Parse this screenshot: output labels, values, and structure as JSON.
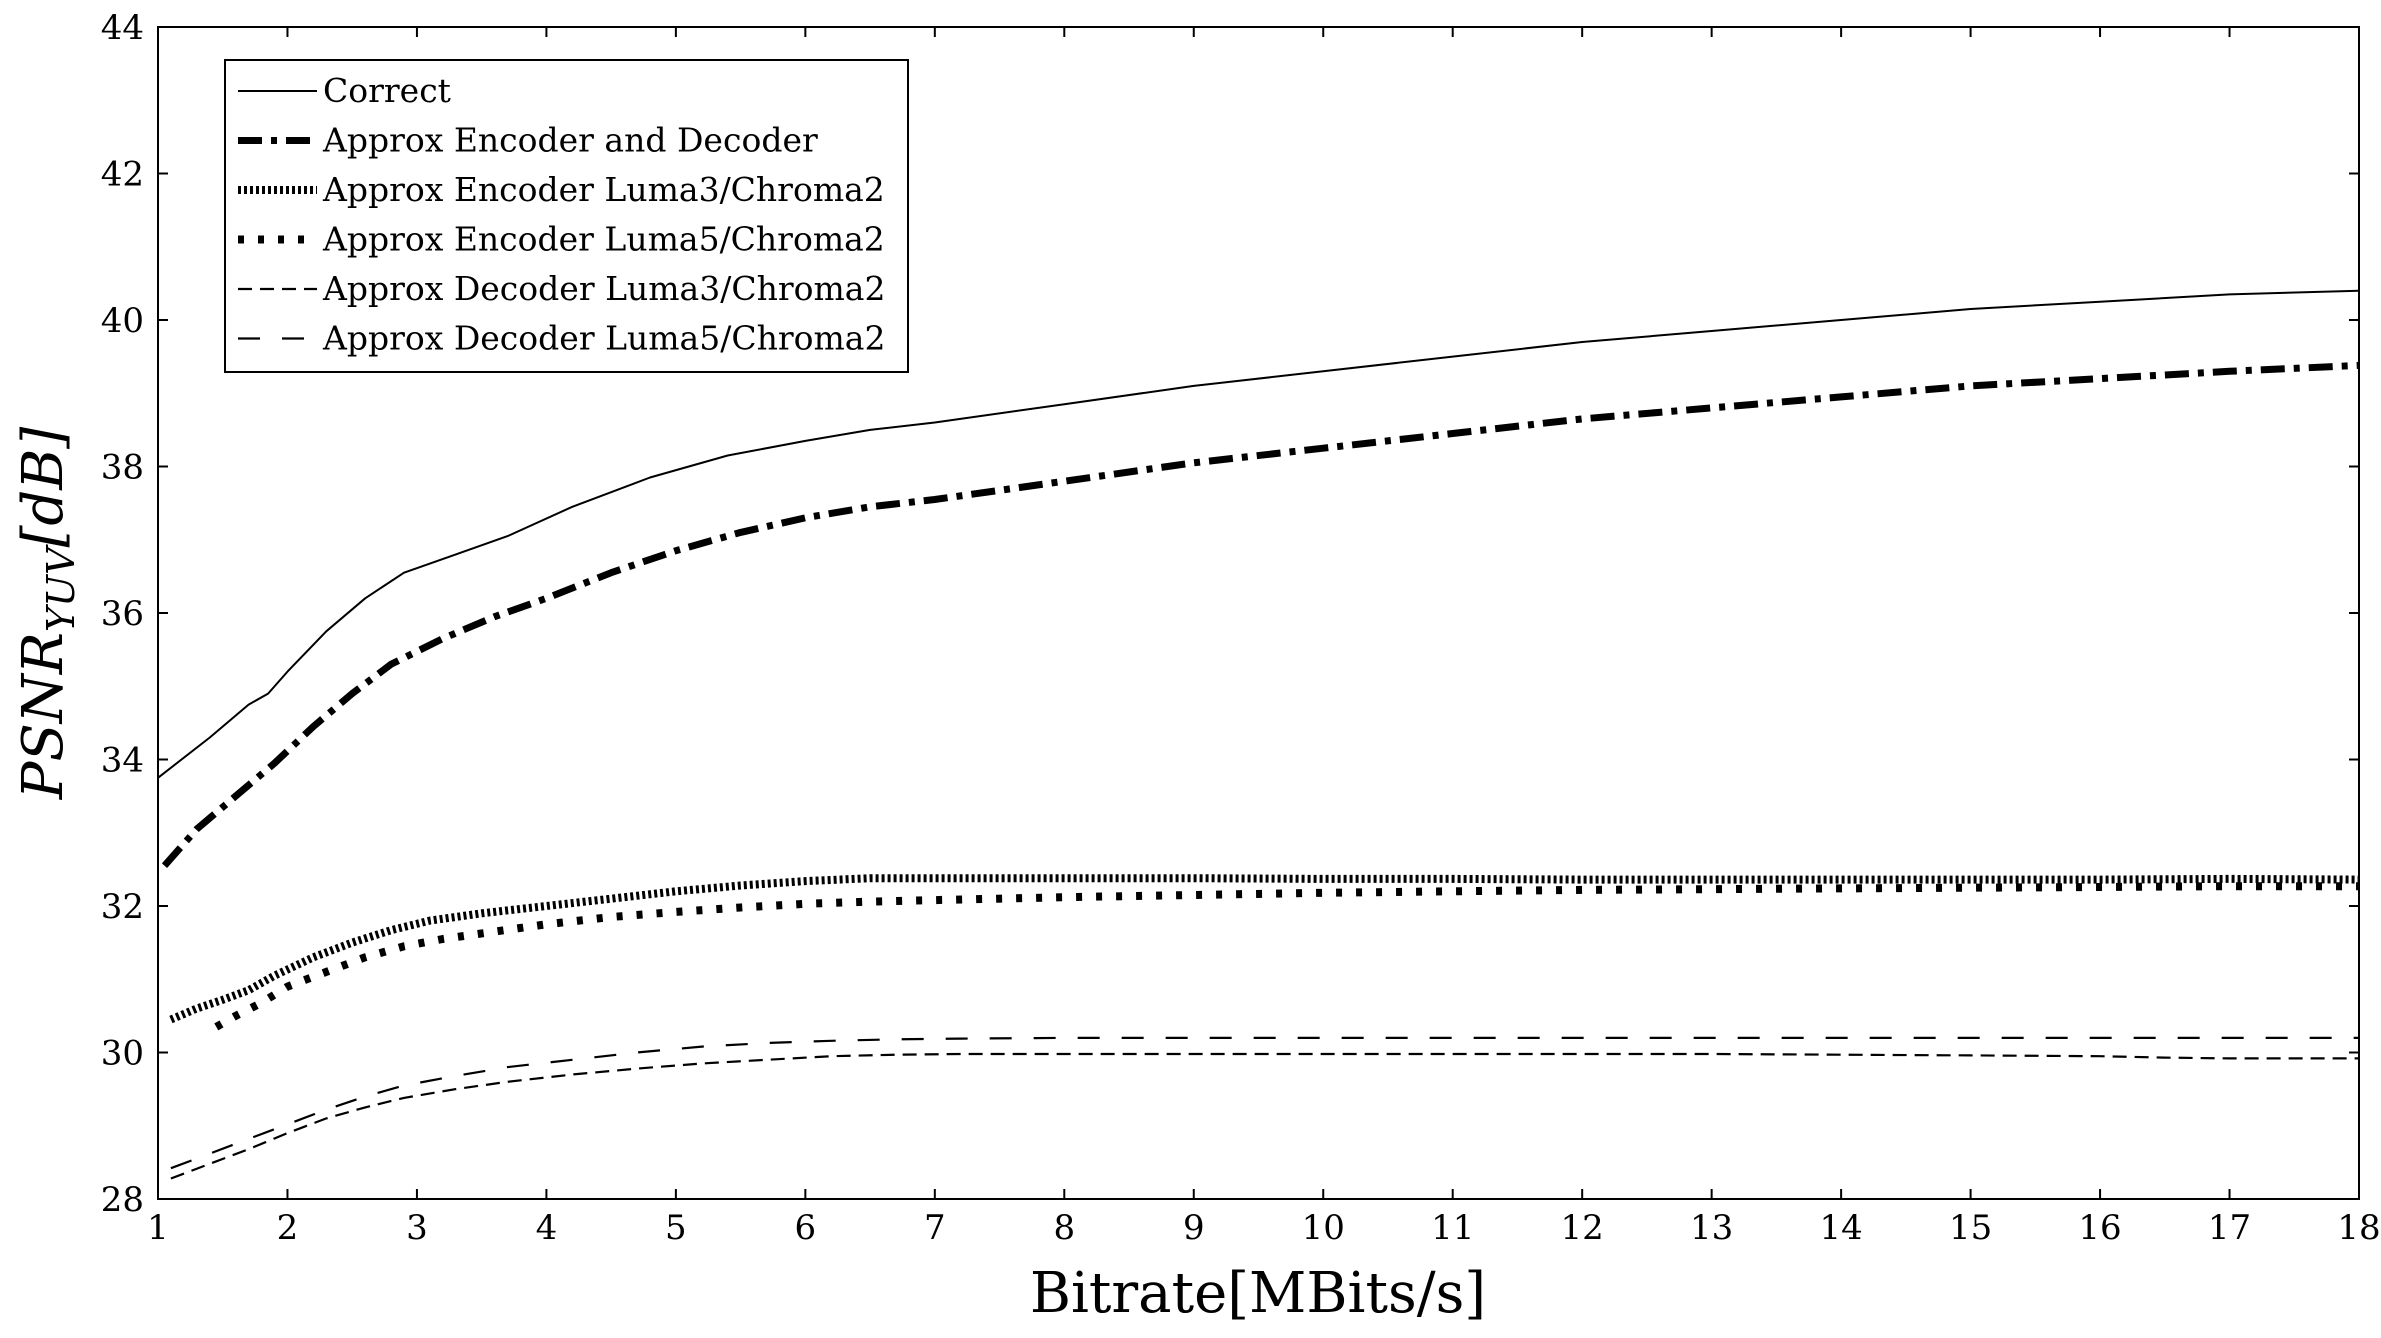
{
  "chart_data": {
    "type": "line",
    "xlabel": "Bitrate[MBits/s]",
    "ylabel": {
      "main": "PSNR",
      "sub": "YUV",
      "unit": "[dB]"
    },
    "xlim": [
      1,
      18
    ],
    "ylim": [
      28,
      44
    ],
    "xticks": [
      "1",
      "2",
      "3",
      "4",
      "5",
      "6",
      "7",
      "8",
      "9",
      "10",
      "11",
      "12",
      "13",
      "14",
      "15",
      "16",
      "17",
      "18"
    ],
    "yticks": [
      "28",
      "30",
      "32",
      "34",
      "36",
      "38",
      "40",
      "42",
      "44"
    ],
    "grid": false,
    "legend_position": "top-left",
    "series": [
      {
        "name": "Correct",
        "style": "solid-thin",
        "x": [
          1,
          1.4,
          1.7,
          1.85,
          2,
          2.3,
          2.6,
          2.9,
          3.3,
          3.7,
          4.2,
          4.8,
          5.4,
          6,
          6.5,
          7,
          8,
          9,
          10,
          11,
          12,
          13,
          14,
          15,
          16,
          17,
          18
        ],
        "y": [
          33.75,
          34.3,
          34.75,
          34.9,
          35.2,
          35.75,
          36.2,
          36.55,
          36.8,
          37.05,
          37.45,
          37.85,
          38.15,
          38.35,
          38.5,
          38.6,
          38.85,
          39.1,
          39.3,
          39.5,
          39.7,
          39.85,
          40.0,
          40.15,
          40.25,
          40.35,
          40.4
        ]
      },
      {
        "name": "Approx Encoder and Decoder",
        "style": "dash-dot-thick",
        "x": [
          1.05,
          1.3,
          1.6,
          1.9,
          2.2,
          2.5,
          2.8,
          3.2,
          3.6,
          4.0,
          4.5,
          5.0,
          5.5,
          6.0,
          6.5,
          7.0,
          8,
          9,
          10,
          11,
          12,
          13,
          14,
          15,
          16,
          17,
          18
        ],
        "y": [
          32.55,
          33.05,
          33.5,
          33.95,
          34.45,
          34.9,
          35.3,
          35.65,
          35.95,
          36.2,
          36.55,
          36.85,
          37.1,
          37.3,
          37.45,
          37.55,
          37.8,
          38.05,
          38.25,
          38.45,
          38.65,
          38.8,
          38.95,
          39.1,
          39.2,
          39.3,
          39.38
        ]
      },
      {
        "name": "Approx Encoder Luma3/Chroma2",
        "style": "dense-dot-thick",
        "x": [
          1.1,
          1.3,
          1.5,
          1.7,
          1.9,
          2.2,
          2.5,
          2.8,
          3.1,
          3.5,
          4.0,
          4.5,
          5.0,
          5.5,
          6.0,
          6.5,
          7.0,
          8,
          9,
          10,
          11,
          12,
          13,
          14,
          15,
          16,
          17,
          18
        ],
        "y": [
          30.45,
          30.6,
          30.72,
          30.85,
          31.05,
          31.3,
          31.5,
          31.67,
          31.8,
          31.9,
          32.0,
          32.1,
          32.2,
          32.28,
          32.34,
          32.38,
          32.38,
          32.38,
          32.38,
          32.37,
          32.37,
          32.36,
          32.36,
          32.36,
          32.36,
          32.36,
          32.37,
          32.36
        ]
      },
      {
        "name": "Approx Encoder Luma5/Chroma2",
        "style": "dotted-thick",
        "x": [
          1.45,
          1.6,
          1.8,
          2.0,
          2.3,
          2.6,
          2.9,
          3.2,
          3.6,
          4.0,
          4.5,
          5.0,
          5.5,
          6.0,
          6.5,
          7.0,
          8,
          9,
          10,
          11,
          12,
          13,
          14,
          15,
          16,
          17,
          18
        ],
        "y": [
          30.35,
          30.5,
          30.68,
          30.9,
          31.1,
          31.3,
          31.45,
          31.55,
          31.65,
          31.75,
          31.85,
          31.92,
          31.98,
          32.03,
          32.06,
          32.08,
          32.12,
          32.15,
          32.18,
          32.2,
          32.22,
          32.23,
          32.24,
          32.25,
          32.26,
          32.27,
          32.27
        ]
      },
      {
        "name": "Approx Decoder Luma3/Chroma2",
        "style": "dashed-fine",
        "x": [
          1.1,
          1.4,
          1.7,
          2.0,
          2.3,
          2.6,
          2.9,
          3.3,
          3.7,
          4.2,
          4.7,
          5.2,
          5.7,
          6.2,
          6.7,
          7.2,
          8,
          9,
          10,
          11,
          12,
          13,
          14,
          15,
          16,
          16.5,
          17,
          18
        ],
        "y": [
          28.28,
          28.48,
          28.68,
          28.9,
          29.1,
          29.25,
          29.38,
          29.5,
          29.6,
          29.7,
          29.78,
          29.85,
          29.9,
          29.95,
          29.97,
          29.98,
          29.98,
          29.98,
          29.98,
          29.98,
          29.98,
          29.98,
          29.97,
          29.96,
          29.95,
          29.93,
          29.92,
          29.92
        ]
      },
      {
        "name": "Approx Decoder Luma5/Chroma2",
        "style": "dashed-loose",
        "x": [
          1.1,
          1.4,
          1.7,
          2.0,
          2.3,
          2.6,
          2.9,
          3.3,
          3.7,
          4.2,
          4.7,
          5.2,
          5.7,
          6.2,
          6.7,
          7.2,
          8,
          9,
          10,
          11,
          12,
          13,
          14,
          15,
          16,
          17,
          18
        ],
        "y": [
          28.42,
          28.62,
          28.82,
          29.02,
          29.22,
          29.4,
          29.55,
          29.68,
          29.8,
          29.9,
          30.0,
          30.08,
          30.13,
          30.16,
          30.18,
          30.19,
          30.2,
          30.2,
          30.2,
          30.2,
          30.2,
          30.2,
          30.2,
          30.2,
          30.2,
          30.2,
          30.2
        ]
      }
    ]
  }
}
